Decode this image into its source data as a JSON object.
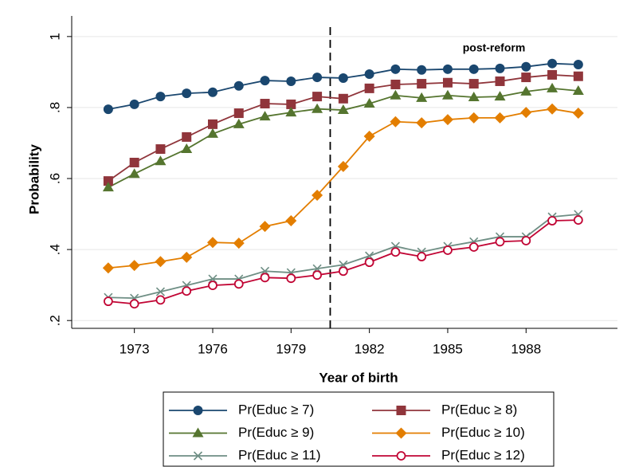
{
  "chart_data": {
    "type": "line",
    "x_label": "Year of birth",
    "y_label": "Probability",
    "annotation": "post-reform",
    "xline": 1980.5,
    "x": [
      1972,
      1973,
      1974,
      1975,
      1976,
      1977,
      1978,
      1979,
      1980,
      1981,
      1982,
      1983,
      1984,
      1985,
      1986,
      1987,
      1988,
      1989,
      1990
    ],
    "series": [
      {
        "name": "Pr(Educ ≥ 7)",
        "color": "#1a476f",
        "marker": "circle",
        "values": [
          0.795,
          0.809,
          0.831,
          0.84,
          0.843,
          0.861,
          0.876,
          0.874,
          0.885,
          0.883,
          0.894,
          0.908,
          0.906,
          0.908,
          0.908,
          0.91,
          0.915,
          0.924,
          0.921
        ]
      },
      {
        "name": "Pr(Educ ≥ 8)",
        "color": "#90353b",
        "marker": "square",
        "values": [
          0.593,
          0.645,
          0.683,
          0.717,
          0.753,
          0.784,
          0.811,
          0.809,
          0.831,
          0.825,
          0.854,
          0.865,
          0.867,
          0.87,
          0.867,
          0.874,
          0.885,
          0.892,
          0.888
        ]
      },
      {
        "name": "Pr(Educ ≥ 9)",
        "color": "#55752f",
        "marker": "triangle",
        "values": [
          0.575,
          0.613,
          0.649,
          0.683,
          0.726,
          0.753,
          0.775,
          0.786,
          0.796,
          0.793,
          0.811,
          0.834,
          0.827,
          0.834,
          0.829,
          0.831,
          0.845,
          0.854,
          0.847
        ]
      },
      {
        "name": "Pr(Educ ≥ 10)",
        "color": "#e37e00",
        "marker": "diamond",
        "values": [
          0.348,
          0.355,
          0.366,
          0.378,
          0.42,
          0.418,
          0.465,
          0.481,
          0.553,
          0.634,
          0.719,
          0.76,
          0.757,
          0.766,
          0.771,
          0.771,
          0.786,
          0.796,
          0.784
        ]
      },
      {
        "name": "Pr(Educ ≥ 11)",
        "color": "#6e8e84",
        "marker": "x",
        "values": [
          0.265,
          0.263,
          0.281,
          0.299,
          0.317,
          0.317,
          0.339,
          0.335,
          0.346,
          0.357,
          0.382,
          0.409,
          0.393,
          0.409,
          0.422,
          0.436,
          0.436,
          0.492,
          0.499
        ]
      },
      {
        "name": "Pr(Educ ≥ 12)",
        "color": "#c10534",
        "marker": "hollow-circle",
        "values": [
          0.254,
          0.247,
          0.258,
          0.283,
          0.299,
          0.303,
          0.321,
          0.319,
          0.328,
          0.339,
          0.364,
          0.393,
          0.38,
          0.398,
          0.407,
          0.422,
          0.425,
          0.481,
          0.483
        ]
      }
    ],
    "xlim": [
      1970.6,
      1991.5
    ],
    "xticks": [
      1973,
      1976,
      1979,
      1982,
      1985,
      1988
    ],
    "ylim": [
      0.178,
      1.058
    ],
    "yticks": [
      {
        "value": 0.2,
        "label": ".2"
      },
      {
        "value": 0.4,
        "label": ".4"
      },
      {
        "value": 0.6,
        "label": ".6"
      },
      {
        "value": 0.8,
        "label": ".8"
      },
      1
    ],
    "grid": true,
    "legend": "bottom"
  }
}
